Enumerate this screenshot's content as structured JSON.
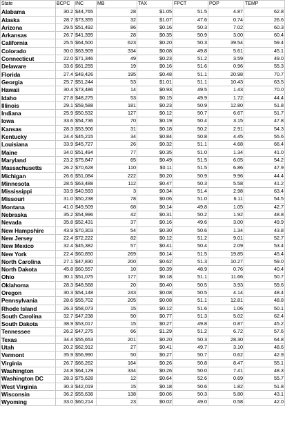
{
  "headers": [
    "State",
    "BCPC",
    "INC",
    "MB",
    "TAX",
    "FPCT",
    "POP",
    "TEMP"
  ],
  "rows": [
    [
      "Alabama",
      "30.2",
      "$44,765",
      "28",
      "$1.05",
      "51.5",
      "4.87",
      "62.8"
    ],
    [
      "Alaska",
      "28.7",
      "$73,355",
      "32",
      "$1.07",
      "47.6",
      "0.74",
      "26.6"
    ],
    [
      "Arizona",
      "29.5",
      "$51,492",
      "86",
      "$0.16",
      "50.3",
      "7.02",
      "60.3"
    ],
    [
      "Arkansas",
      "26.7",
      "$41,395",
      "28",
      "$0.35",
      "50.9",
      "3.00",
      "60.4"
    ],
    [
      "California",
      "25.5",
      "$64,500",
      "623",
      "$0.20",
      "50.3",
      "39.54",
      "59.4"
    ],
    [
      "Colorado",
      "30.0",
      "$63,909",
      "334",
      "$0.08",
      "49.8",
      "5.61",
      "45.1"
    ],
    [
      "Connecticut",
      "22.0",
      "$71,346",
      "49",
      "$0.23",
      "51.2",
      "3.59",
      "49.0"
    ],
    [
      "Delaware",
      "33.6",
      "$61,255",
      "19",
      "$0.16",
      "51.6",
      "0.96",
      "55.3"
    ],
    [
      "Florida",
      "27.4",
      "$49,426",
      "195",
      "$0.48",
      "51.1",
      "20.98",
      "70.7"
    ],
    [
      "Georgia",
      "25.7",
      "$51,244",
      "53",
      "$1.01",
      "51.1",
      "10.43",
      "63.5"
    ],
    [
      "Hawaii",
      "30.4",
      "$73,486",
      "14",
      "$0.93",
      "49.5",
      "1.43",
      "70.0"
    ],
    [
      "Idaho",
      "27.8",
      "$48,275",
      "53",
      "$0.15",
      "49.9",
      "1.72",
      "44.4"
    ],
    [
      "Illinois",
      "29.1",
      "$59,588",
      "181",
      "$0.23",
      "50.9",
      "12.80",
      "51.8"
    ],
    [
      "Indiana",
      "25.9",
      "$50,532",
      "127",
      "$0.12",
      "50.7",
      "6.67",
      "51.7"
    ],
    [
      "Iowa",
      "33.6",
      "$54,736",
      "70",
      "$0.19",
      "50.4",
      "3.15",
      "47.8"
    ],
    [
      "Kansas",
      "28.3",
      "$53,906",
      "31",
      "$0.18",
      "50.2",
      "2.91",
      "54.3"
    ],
    [
      "Kentucky",
      "24.4",
      "$45,215",
      "34",
      "$0.84",
      "50.8",
      "4.45",
      "55.6"
    ],
    [
      "Louisiana",
      "33.9",
      "$45,727",
      "26",
      "$0.32",
      "51.1",
      "4.68",
      "66.4"
    ],
    [
      "Maine",
      "34.0",
      "$51,494",
      "77",
      "$0.35",
      "51.0",
      "1.34",
      "41.0"
    ],
    [
      "Maryland",
      "23.2",
      "$75,847",
      "65",
      "$0.49",
      "51.5",
      "6.05",
      "54.2"
    ],
    [
      "Massachusetts",
      "26.2",
      "$70,628",
      "110",
      "$0.11",
      "51.5",
      "6.86",
      "47.9"
    ],
    [
      "Michigan",
      "26.6",
      "$51,084",
      "222",
      "$0.20",
      "50.9",
      "9.96",
      "44.4"
    ],
    [
      "Minnesota",
      "28.5",
      "$63,488",
      "112",
      "$0.47",
      "50.3",
      "5.58",
      "41.2"
    ],
    [
      "Mississippi",
      "33.9",
      "$40,593",
      "3",
      "$0.34",
      "51.4",
      "2.98",
      "63.4"
    ],
    [
      "Missouri",
      "31.0",
      "$50,238",
      "78",
      "$0.06",
      "51.0",
      "6.11",
      "54.5"
    ],
    [
      "Montana",
      "41.0",
      "$49,509",
      "68",
      "$0.14",
      "49.8",
      "1.05",
      "42.7"
    ],
    [
      "Nebraska",
      "35.2",
      "$54,996",
      "42",
      "$0.31",
      "50.2",
      "1.92",
      "48.8"
    ],
    [
      "Nevada",
      "35.8",
      "$52,431",
      "37",
      "$0.16",
      "49.6",
      "3.00",
      "49.9"
    ],
    [
      "New Hampshire",
      "43.9",
      "$70,303",
      "54",
      "$0.30",
      "50.6",
      "1.34",
      "43.8"
    ],
    [
      "New Jersey",
      "22.4",
      "$72,222",
      "82",
      "$0.12",
      "51.2",
      "9.01",
      "52.7"
    ],
    [
      "New Mexico",
      "32.4",
      "$45,382",
      "57",
      "$0.41",
      "50.4",
      "2.09",
      "53.4"
    ],
    [
      "New York",
      "22.4",
      "$60,850",
      "269",
      "$0.14",
      "51.5",
      "19.85",
      "45.4"
    ],
    [
      "North Carolina",
      "27.1",
      "$47,830",
      "200",
      "$0.62",
      "51.3",
      "10.27",
      "59.0"
    ],
    [
      "North Dakota",
      "45.8",
      "$60,557",
      "10",
      "$0.39",
      "48.9",
      "0.76",
      "40.4"
    ],
    [
      "Ohio",
      "30.1",
      "$51,075",
      "177",
      "$0.18",
      "51.1",
      "11.66",
      "50.7"
    ],
    [
      "Oklahoma",
      "28.3",
      "$48,568",
      "20",
      "$0.40",
      "50.5",
      "3.93",
      "59.6"
    ],
    [
      "Oregon",
      "30.3",
      "$54,148",
      "243",
      "$0.08",
      "50.5",
      "4.14",
      "48.4"
    ],
    [
      "Pennsylvania",
      "28.6",
      "$55,702",
      "205",
      "$0.08",
      "51.1",
      "12.81",
      "48.8"
    ],
    [
      "Rhode Island",
      "26.3",
      "$58,073",
      "15",
      "$0.12",
      "51.6",
      "1.06",
      "50.1"
    ],
    [
      "South Carolina",
      "32.7",
      "$47,238",
      "50",
      "$0.77",
      "51.3",
      "5.02",
      "62.4"
    ],
    [
      "South Dakota",
      "38.9",
      "$53,017",
      "15",
      "$0.27",
      "49.8",
      "0.87",
      "45.2"
    ],
    [
      "Tennessee",
      "26.2",
      "$47,275",
      "66",
      "$1.29",
      "51.2",
      "6.72",
      "57.6"
    ],
    [
      "Texas",
      "34.4",
      "$55,653",
      "201",
      "$0.20",
      "50.3",
      "28.30",
      "64.8"
    ],
    [
      "Utah",
      "20.2",
      "$62,912",
      "27",
      "$0.41",
      "49.7",
      "3.10",
      "48.6"
    ],
    [
      "Vermont",
      "35.9",
      "$56,990",
      "50",
      "$0.27",
      "50.7",
      "0.62",
      "42.9"
    ],
    [
      "Virginia",
      "26.7",
      "$66,262",
      "164",
      "$0.26",
      "50.8",
      "8.47",
      "55.1"
    ],
    [
      "Washington",
      "24.8",
      "$64,129",
      "334",
      "$0.26",
      "50.0",
      "7.41",
      "48.3"
    ],
    [
      "Washington DC",
      "28.3",
      "$75,628",
      "12",
      "$0.64",
      "52.6",
      "0.69",
      "55.7"
    ],
    [
      "West Virginia",
      "30.3",
      "$42,019",
      "15",
      "$0.18",
      "50.6",
      "1.82",
      "51.8"
    ],
    [
      "Wisconsin",
      "36.2",
      "$55,638",
      "138",
      "$0.06",
      "50.3",
      "5.80",
      "43.1"
    ],
    [
      "Wyoming",
      "33.0",
      "$60,214",
      "23",
      "$0.02",
      "49.0",
      "0.58",
      "42.0"
    ]
  ]
}
